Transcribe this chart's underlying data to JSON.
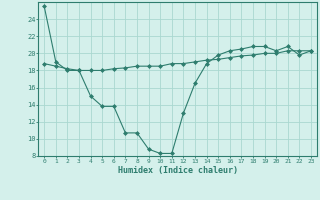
{
  "x": [
    0,
    1,
    2,
    3,
    4,
    5,
    6,
    7,
    8,
    9,
    10,
    11,
    12,
    13,
    14,
    15,
    16,
    17,
    18,
    19,
    20,
    21,
    22,
    23
  ],
  "line1": [
    25.5,
    19.0,
    18.0,
    18.0,
    15.0,
    13.8,
    13.8,
    10.7,
    10.7,
    8.8,
    8.3,
    8.3,
    13.0,
    16.5,
    18.8,
    19.8,
    20.3,
    20.5,
    20.8,
    20.8,
    20.3,
    20.8,
    19.8,
    20.3
  ],
  "line2": [
    18.8,
    18.5,
    18.2,
    18.0,
    18.0,
    18.0,
    18.2,
    18.3,
    18.5,
    18.5,
    18.5,
    18.8,
    18.8,
    19.0,
    19.2,
    19.3,
    19.5,
    19.7,
    19.8,
    20.0,
    20.0,
    20.3,
    20.3,
    20.3
  ],
  "line_color": "#2e7d6e",
  "bg_color": "#d4f0eb",
  "grid_color": "#aad8d0",
  "xlabel": "Humidex (Indice chaleur)",
  "ylim": [
    8,
    26
  ],
  "xlim": [
    -0.5,
    23.5
  ],
  "yticks": [
    8,
    10,
    12,
    14,
    16,
    18,
    20,
    22,
    24
  ],
  "xticks": [
    0,
    1,
    2,
    3,
    4,
    5,
    6,
    7,
    8,
    9,
    10,
    11,
    12,
    13,
    14,
    15,
    16,
    17,
    18,
    19,
    20,
    21,
    22,
    23
  ]
}
